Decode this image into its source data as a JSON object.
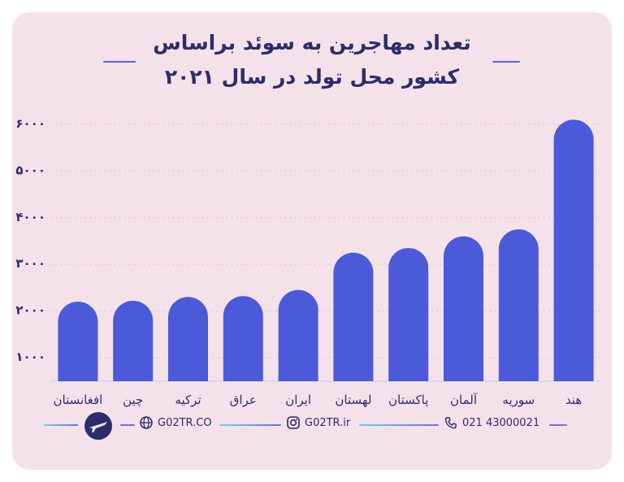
{
  "title_line1": "تعداد مهاجرین به سوئد براساس",
  "title_line2": "کشور محل تولد در سال ۲۰۲۱",
  "chart_data": {
    "type": "bar",
    "categories": [
      "افغانستان",
      "چین",
      "ترکیه",
      "عراق",
      "ایران",
      "لهستان",
      "پاکستان",
      "آلمان",
      "سوریه",
      "هند"
    ],
    "values": [
      2200,
      2220,
      2300,
      2320,
      2450,
      3250,
      3350,
      3600,
      3750,
      6100
    ],
    "yticks": [
      1000,
      2000,
      3000,
      4000,
      5000,
      6000
    ],
    "ytick_labels": [
      "۱۰۰۰",
      "۲۰۰۰",
      "۳۰۰۰",
      "۴۰۰۰",
      "۵۰۰۰",
      "۶۰۰۰"
    ],
    "ylim": [
      500,
      6000
    ],
    "grid": true,
    "bar_color": "#4a5ad9"
  },
  "footer": {
    "website": "G02TR.CO",
    "instagram": "G02TR.ir",
    "phone": "021 43000021"
  },
  "colors": {
    "background": "#f5e1ea",
    "title": "#2b2d6b",
    "accent": "#5b63d6"
  }
}
